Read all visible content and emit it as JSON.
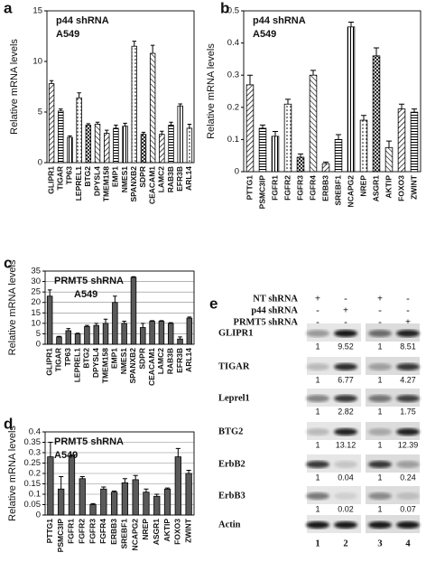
{
  "chart_data": [
    {
      "type": "bar",
      "label": "a",
      "y_label": "Relative mRNA levels",
      "annotations": [
        "p44 shRNA",
        "A549"
      ],
      "categories": [
        "GLIPR1",
        "TIGAR",
        "TP63",
        "LEPREL1",
        "BTG2",
        "DPYSL4",
        "TMEM158",
        "EMP1",
        "NMES1",
        "SPANXB2",
        "SDPR",
        "CEACAM1",
        "LAMC2",
        "RAB3B",
        "EFR3B",
        "ARL14"
      ],
      "values": [
        7.8,
        5.1,
        2.5,
        6.4,
        3.7,
        3.8,
        2.9,
        3.4,
        3.6,
        11.5,
        2.8,
        10.8,
        2.8,
        3.7,
        5.6,
        3.4
      ],
      "errors": [
        0.3,
        0.2,
        0.15,
        0.5,
        0.15,
        0.2,
        0.3,
        0.3,
        0.3,
        0.5,
        0.2,
        0.8,
        0.3,
        0.3,
        0.2,
        0.4
      ],
      "color": "#ffffff",
      "hatched": true,
      "grid": false,
      "ylim": [
        0,
        15
      ],
      "yticks": [
        0,
        5,
        10,
        15
      ]
    },
    {
      "type": "bar",
      "label": "b",
      "y_label": "Relative mRNA levels",
      "annotations": [
        "p44 shRNA",
        "A549"
      ],
      "categories": [
        "PTTG1",
        "PSMC3IP",
        "FGFR1",
        "FGFR2",
        "FGFR3",
        "FGFR4",
        "ERBB3",
        "SREBF1",
        "NCAPG2",
        "NREP",
        "ASGR1",
        "AKTIP",
        "FOXO3",
        "ZWINT"
      ],
      "values": [
        0.27,
        0.135,
        0.11,
        0.21,
        0.045,
        0.3,
        0.025,
        0.1,
        0.45,
        0.16,
        0.36,
        0.075,
        0.195,
        0.185
      ],
      "errors": [
        0.03,
        0.01,
        0.015,
        0.015,
        0.01,
        0.015,
        0.005,
        0.015,
        0.015,
        0.015,
        0.025,
        0.02,
        0.015,
        0.01
      ],
      "color": "#ffffff",
      "hatched": true,
      "grid": false,
      "ylim": [
        0,
        0.5
      ],
      "yticks": [
        0,
        0.1,
        0.2,
        0.3,
        0.4,
        0.5
      ]
    },
    {
      "type": "bar",
      "label": "c",
      "y_label": "Relative mRNA levels",
      "annotations": [
        "PRMT5 shRNA",
        "A549"
      ],
      "categories": [
        "GLIPR1",
        "TIGAR",
        "TP63",
        "LEPREL1",
        "BTG2",
        "DPYSL4",
        "TMEM158",
        "EMP1",
        "NMES1",
        "SPANXB2",
        "SDPR",
        "CEACAM1",
        "LAMC2",
        "RAB3B",
        "EFR3B",
        "ARL14"
      ],
      "values": [
        23,
        3.5,
        6.5,
        5,
        8.5,
        9,
        10,
        20,
        10,
        32,
        8,
        11,
        11,
        10,
        2.5,
        12.5
      ],
      "errors": [
        3,
        0.3,
        1,
        0.3,
        0.5,
        1,
        2,
        3,
        1,
        0.3,
        2,
        0.3,
        0.3,
        0.3,
        1,
        0.5
      ],
      "color": "#5a5a5a",
      "hatched": false,
      "grid": true,
      "ylim": [
        0,
        35
      ],
      "yticks": [
        0,
        5,
        10,
        15,
        20,
        25,
        30,
        35
      ]
    },
    {
      "type": "bar",
      "label": "d",
      "y_label": "Relative mRNA levels",
      "annotations": [
        "PRMT5 shRNA",
        "A549"
      ],
      "categories": [
        "PTTG1",
        "PSMC3IP",
        "FGFR1",
        "FGFR2",
        "FGFR3",
        "FGFR4",
        "ERBB3",
        "SREBF1",
        "NCAPG2",
        "NREP",
        "ASGR1",
        "AKTIP",
        "FOXO3",
        "ZWINT"
      ],
      "values": [
        0.28,
        0.125,
        0.285,
        0.175,
        0.05,
        0.125,
        0.11,
        0.155,
        0.17,
        0.11,
        0.09,
        0.125,
        0.28,
        0.2
      ],
      "errors": [
        0.07,
        0.06,
        0.005,
        0.01,
        0.005,
        0.01,
        0.005,
        0.02,
        0.02,
        0.015,
        0.01,
        0.005,
        0.04,
        0.015
      ],
      "color": "#5a5a5a",
      "hatched": false,
      "grid": true,
      "ylim": [
        0,
        0.4
      ],
      "yticks": [
        0,
        0.05,
        0.1,
        0.15,
        0.2,
        0.25,
        0.3,
        0.35,
        0.4
      ]
    }
  ],
  "blot": {
    "label": "e",
    "conditions": [
      {
        "name": "NT shRNA",
        "signs": [
          "+",
          "-",
          "+",
          "-"
        ]
      },
      {
        "name": "p44 shRNA",
        "signs": [
          "-",
          "+",
          "-",
          "-"
        ]
      },
      {
        "name": "PRMT5 shRNA",
        "signs": [
          "-",
          "-",
          "-",
          "+"
        ]
      }
    ],
    "rows": [
      {
        "name": "GLIPR1",
        "values": [
          1,
          9.52,
          1,
          8.51
        ]
      },
      {
        "name": "TIGAR",
        "values": [
          1,
          6.77,
          1,
          4.27
        ]
      },
      {
        "name": "Leprel1",
        "values": [
          1,
          2.82,
          1,
          1.75
        ]
      },
      {
        "name": "BTG2",
        "values": [
          1,
          13.12,
          1,
          12.39
        ]
      },
      {
        "name": "ErbB2",
        "values": [
          1,
          0.04,
          1,
          0.24
        ]
      },
      {
        "name": "ErbB3",
        "values": [
          1,
          0.02,
          1,
          0.07
        ]
      },
      {
        "name": "Actin"
      }
    ],
    "lanes": [
      "1",
      "2",
      "3",
      "4"
    ]
  }
}
